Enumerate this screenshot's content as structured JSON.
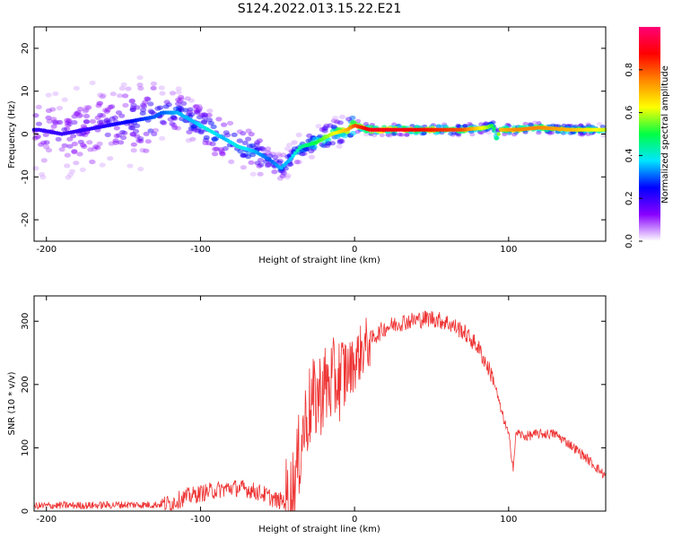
{
  "title": "S124.2022.013.15.22.E21",
  "colors": {
    "snr_line": "#ee3333",
    "axis": "#000000",
    "background": "#ffffff"
  },
  "chart_data": [
    {
      "type": "heatmap",
      "name": "spectrogram",
      "xlabel": "Height of straight line (km)",
      "ylabel": "Frequency (Hz)",
      "xlim": [
        -208,
        163
      ],
      "ylim": [
        -25,
        25
      ],
      "xticks": [
        -200,
        -100,
        0,
        100
      ],
      "yticks": [
        -20,
        -10,
        0,
        10,
        20
      ],
      "colorbar": {
        "label": "Normalized spectral amplitude",
        "range": [
          0,
          1
        ],
        "ticks": [
          "0.0",
          "0.2",
          "0.4",
          "0.6",
          "0.8"
        ],
        "colormap": [
          "#ffffff",
          "#8800ff",
          "#0000ff",
          "#00e5ff",
          "#00ff44",
          "#ffff00",
          "#ff8800",
          "#ff0000",
          "#ff0077"
        ]
      },
      "ridge": {
        "x": [
          -205,
          -190,
          -175,
          -160,
          -145,
          -130,
          -125,
          -115,
          -105,
          -95,
          -85,
          -75,
          -65,
          -55,
          -48,
          -42,
          -35,
          -25,
          -15,
          -5,
          0,
          10,
          30,
          50,
          70,
          85,
          90,
          92,
          95,
          105,
          120,
          140,
          163
        ],
        "freq": [
          1,
          0,
          1,
          2,
          3,
          4,
          5,
          5,
          3,
          1,
          -1,
          -3,
          -4,
          -6,
          -8,
          -6,
          -3,
          -2,
          0,
          1,
          2,
          1,
          1,
          1,
          1,
          1.5,
          2,
          -1,
          1,
          1,
          1.5,
          1,
          1
        ],
        "amplitude": [
          0.2,
          0.2,
          0.2,
          0.22,
          0.25,
          0.3,
          0.3,
          0.35,
          0.35,
          0.4,
          0.35,
          0.4,
          0.35,
          0.3,
          0.35,
          0.35,
          0.45,
          0.5,
          0.6,
          0.7,
          0.8,
          0.9,
          0.9,
          0.85,
          0.8,
          0.6,
          0.5,
          0.45,
          0.7,
          0.75,
          0.75,
          0.7,
          0.6
        ]
      }
    },
    {
      "type": "line",
      "name": "snr",
      "xlabel": "Height of straight line (km)",
      "ylabel": "SNR (10 * v/v)",
      "xlim": [
        -208,
        163
      ],
      "ylim": [
        0,
        340
      ],
      "xticks": [
        -200,
        -100,
        0,
        100
      ],
      "yticks": [
        0,
        100,
        200,
        300
      ],
      "series": [
        {
          "name": "SNR",
          "x": [
            -208,
            -190,
            -170,
            -150,
            -130,
            -120,
            -110,
            -100,
            -90,
            -80,
            -70,
            -60,
            -50,
            -42,
            -38,
            -34,
            -30,
            -20,
            -10,
            -5,
            0,
            5,
            10,
            20,
            30,
            40,
            50,
            60,
            70,
            80,
            90,
            95,
            100,
            103,
            105,
            110,
            120,
            130,
            140,
            150,
            163
          ],
          "values": [
            8,
            9,
            9,
            10,
            10,
            12,
            22,
            28,
            33,
            37,
            35,
            28,
            16,
            18,
            55,
            120,
            160,
            195,
            210,
            220,
            235,
            255,
            270,
            290,
            298,
            302,
            305,
            298,
            285,
            260,
            210,
            160,
            120,
            70,
            125,
            118,
            122,
            122,
            105,
            85,
            55
          ]
        }
      ]
    }
  ]
}
